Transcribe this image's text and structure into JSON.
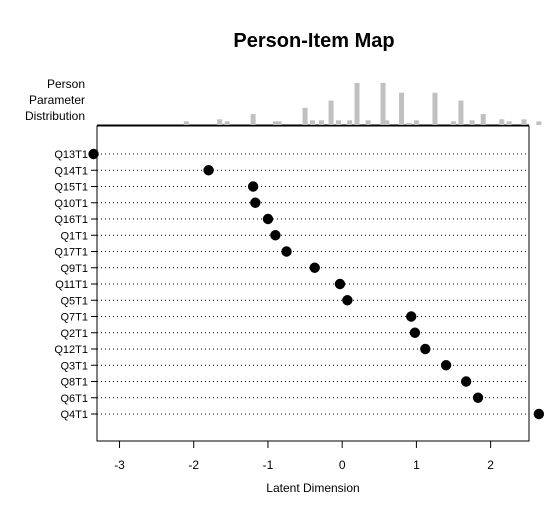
{
  "chart_data": {
    "type": "scatter",
    "title": "Person-Item Map",
    "xlabel": "Latent Dimension",
    "top_panel_label": [
      "Person",
      "Parameter",
      "Distribution"
    ],
    "xlim": [
      -3.6,
      2.8
    ],
    "x_ticks": [
      -3,
      -2,
      -1,
      0,
      1,
      2
    ],
    "x_tick_labels": [
      "-3",
      "-2",
      "-1",
      "0",
      "1",
      "2"
    ],
    "grid": "dotted-horizontal",
    "point_color": "#000000",
    "bar_color": "#c0c0c0",
    "items": [
      {
        "label": "Q13T1",
        "x": -3.35
      },
      {
        "label": "Q14T1",
        "x": -1.8
      },
      {
        "label": "Q15T1",
        "x": -1.2
      },
      {
        "label": "Q10T1",
        "x": -1.17
      },
      {
        "label": "Q16T1",
        "x": -1.0
      },
      {
        "label": "Q1T1",
        "x": -0.9
      },
      {
        "label": "Q17T1",
        "x": -0.75
      },
      {
        "label": "Q9T1",
        "x": -0.37
      },
      {
        "label": "Q11T1",
        "x": -0.03
      },
      {
        "label": "Q5T1",
        "x": 0.07
      },
      {
        "label": "Q7T1",
        "x": 0.93
      },
      {
        "label": "Q2T1",
        "x": 0.98
      },
      {
        "label": "Q12T1",
        "x": 1.12
      },
      {
        "label": "Q3T1",
        "x": 1.4
      },
      {
        "label": "Q8T1",
        "x": 1.67
      },
      {
        "label": "Q6T1",
        "x": 1.83
      },
      {
        "label": "Q4T1",
        "x": 2.65
      }
    ],
    "person_distribution": [
      {
        "x": -2.1,
        "height": 0.07
      },
      {
        "x": -1.65,
        "height": 0.11
      },
      {
        "x": -1.55,
        "height": 0.07
      },
      {
        "x": -1.2,
        "height": 0.21
      },
      {
        "x": -0.9,
        "height": 0.07
      },
      {
        "x": -0.85,
        "height": 0.07
      },
      {
        "x": -0.5,
        "height": 0.33
      },
      {
        "x": -0.4,
        "height": 0.09
      },
      {
        "x": -0.28,
        "height": 0.09
      },
      {
        "x": -0.15,
        "height": 0.47
      },
      {
        "x": -0.05,
        "height": 0.09
      },
      {
        "x": 0.1,
        "height": 0.09
      },
      {
        "x": 0.2,
        "height": 0.81
      },
      {
        "x": 0.35,
        "height": 0.09
      },
      {
        "x": 0.55,
        "height": 0.81
      },
      {
        "x": 0.6,
        "height": 0.09
      },
      {
        "x": 0.8,
        "height": 0.62
      },
      {
        "x": 0.9,
        "height": 0.04
      },
      {
        "x": 1.0,
        "height": 0.09
      },
      {
        "x": 1.25,
        "height": 0.62
      },
      {
        "x": 1.5,
        "height": 0.07
      },
      {
        "x": 1.6,
        "height": 0.47
      },
      {
        "x": 1.75,
        "height": 0.09
      },
      {
        "x": 1.9,
        "height": 0.21
      },
      {
        "x": 2.15,
        "height": 0.11
      },
      {
        "x": 2.25,
        "height": 0.07
      },
      {
        "x": 2.45,
        "height": 0.11
      },
      {
        "x": 2.65,
        "height": 0.07
      }
    ]
  }
}
